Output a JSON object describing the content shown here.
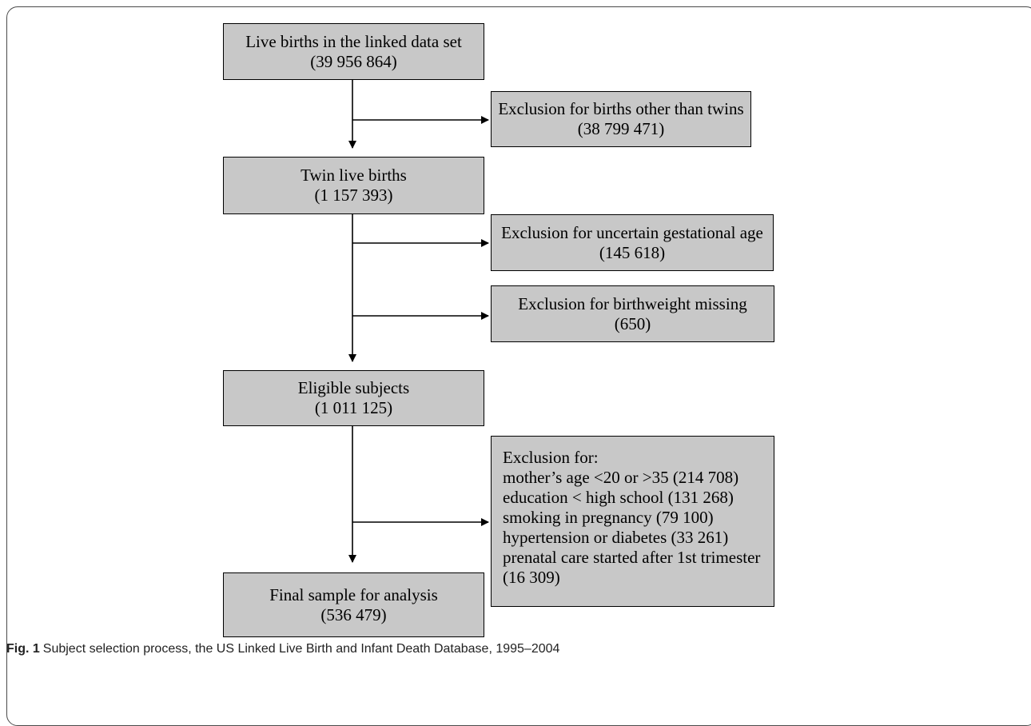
{
  "boxes": {
    "live_births": {
      "line1": "Live births in the linked data set",
      "line2": "(39 956 864)"
    },
    "excl_twins": {
      "line1": "Exclusion for births other than twins",
      "line2": "(38 799 471)"
    },
    "twin_births": {
      "line1": "Twin live births",
      "line2": "(1 157 393)"
    },
    "excl_gest": {
      "line1": "Exclusion for uncertain gestational age",
      "line2": "(145 618)"
    },
    "excl_bw": {
      "line1": "Exclusion for birthweight missing",
      "line2": "(650)"
    },
    "eligible": {
      "line1": "Eligible subjects",
      "line2": "(1 011 125)"
    },
    "excl_multi": {
      "lines": [
        "Exclusion for:",
        "mother’s age <20 or >35 (214 708)",
        "education < high school (131 268)",
        "smoking in pregnancy (79 100)",
        "hypertension or diabetes (33 261)",
        "prenatal care started after 1st trimester",
        "(16 309)"
      ]
    },
    "final": {
      "line1": "Final sample for analysis",
      "line2": "(536 479)"
    }
  },
  "caption": {
    "label": "Fig. 1",
    "text": "Subject selection process, the US Linked Live Birth and Infant Death Database, 1995–2004"
  }
}
